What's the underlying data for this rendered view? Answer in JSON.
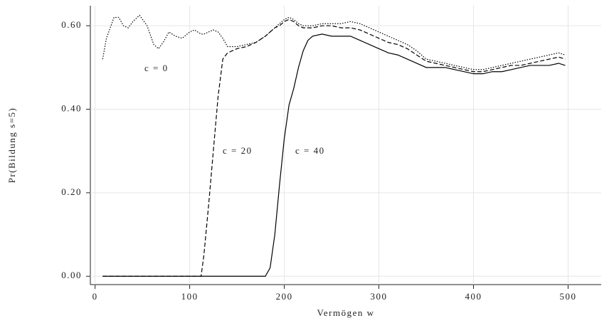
{
  "chart_data": {
    "type": "line",
    "xlabel": "Vermögen w",
    "ylabel": "Pr(Bildung s=5)",
    "xlim": [
      -5,
      535
    ],
    "ylim": [
      -0.02,
      0.648
    ],
    "xticks": [
      0,
      100,
      200,
      300,
      400,
      500
    ],
    "yticks": [
      {
        "value": 0,
        "label": "0.00"
      },
      {
        "value": 0.2,
        "label": "0.20"
      },
      {
        "value": 0.4,
        "label": "0.40"
      },
      {
        "value": 0.6,
        "label": "0.60"
      }
    ],
    "grid": true,
    "x": [
      8,
      12,
      20,
      25,
      30,
      35,
      40,
      47,
      55,
      62,
      67,
      72,
      78,
      85,
      92,
      100,
      105,
      112,
      115,
      120,
      125,
      130,
      135,
      140,
      150,
      160,
      170,
      180,
      185,
      190,
      195,
      200,
      205,
      210,
      215,
      220,
      225,
      230,
      240,
      250,
      260,
      270,
      280,
      290,
      300,
      310,
      320,
      330,
      340,
      350,
      360,
      370,
      380,
      390,
      400,
      410,
      420,
      430,
      440,
      450,
      460,
      470,
      480,
      490,
      497
    ],
    "series": [
      {
        "name": "c = 0",
        "color": "#000000",
        "style": "dotted",
        "values": [
          0.52,
          0.57,
          0.62,
          0.62,
          0.6,
          0.595,
          0.61,
          0.625,
          0.6,
          0.555,
          0.545,
          0.56,
          0.585,
          0.575,
          0.57,
          0.585,
          0.59,
          0.58,
          0.58,
          0.585,
          0.59,
          0.585,
          0.57,
          0.55,
          0.55,
          0.555,
          0.56,
          0.575,
          0.585,
          0.595,
          0.605,
          0.615,
          0.62,
          0.615,
          0.605,
          0.6,
          0.6,
          0.6,
          0.605,
          0.605,
          0.605,
          0.61,
          0.605,
          0.595,
          0.585,
          0.575,
          0.565,
          0.555,
          0.54,
          0.52,
          0.515,
          0.51,
          0.505,
          0.5,
          0.495,
          0.495,
          0.5,
          0.505,
          0.51,
          0.515,
          0.52,
          0.525,
          0.53,
          0.535,
          0.53
        ]
      },
      {
        "name": "c = 20",
        "color": "#000000",
        "style": "dashed",
        "values": [
          0,
          0,
          0,
          0,
          0,
          0,
          0,
          0,
          0,
          0,
          0,
          0,
          0,
          0,
          0,
          0,
          0,
          0,
          0.05,
          0.17,
          0.3,
          0.43,
          0.52,
          0.535,
          0.545,
          0.55,
          0.56,
          0.575,
          0.585,
          0.595,
          0.6,
          0.61,
          0.615,
          0.61,
          0.6,
          0.595,
          0.595,
          0.595,
          0.6,
          0.6,
          0.595,
          0.595,
          0.59,
          0.58,
          0.57,
          0.56,
          0.555,
          0.545,
          0.53,
          0.515,
          0.51,
          0.505,
          0.5,
          0.495,
          0.49,
          0.49,
          0.495,
          0.5,
          0.505,
          0.505,
          0.51,
          0.515,
          0.52,
          0.525,
          0.52
        ]
      },
      {
        "name": "c = 40",
        "color": "#000000",
        "style": "solid",
        "values": [
          0,
          0,
          0,
          0,
          0,
          0,
          0,
          0,
          0,
          0,
          0,
          0,
          0,
          0,
          0,
          0,
          0,
          0,
          0,
          0,
          0,
          0,
          0,
          0,
          0,
          0,
          0,
          0,
          0.02,
          0.1,
          0.22,
          0.33,
          0.41,
          0.45,
          0.5,
          0.54,
          0.565,
          0.575,
          0.58,
          0.575,
          0.575,
          0.575,
          0.565,
          0.555,
          0.545,
          0.535,
          0.53,
          0.52,
          0.51,
          0.5,
          0.5,
          0.5,
          0.495,
          0.49,
          0.485,
          0.485,
          0.49,
          0.49,
          0.495,
          0.5,
          0.505,
          0.505,
          0.505,
          0.51,
          0.505
        ]
      }
    ]
  }
}
